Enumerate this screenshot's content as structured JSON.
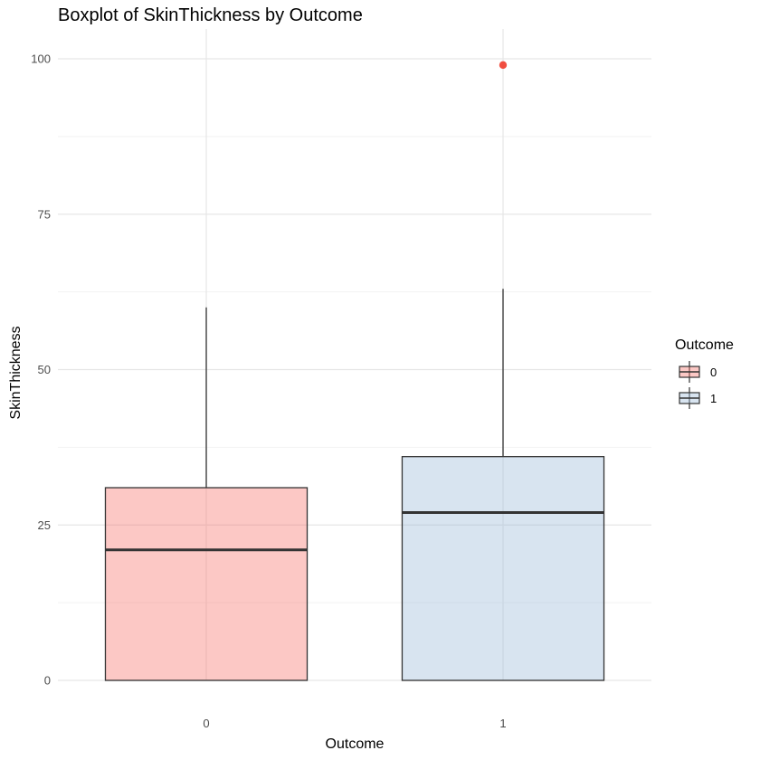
{
  "chart_data": {
    "type": "boxplot",
    "title": "Boxplot of SkinThickness by Outcome",
    "xlabel": "Outcome",
    "ylabel": "SkinThickness",
    "ylim": [
      0,
      100
    ],
    "y_ticks": [
      0,
      25,
      50,
      75,
      100
    ],
    "y_tick_labels": [
      "0",
      "25",
      "50",
      "75",
      "100"
    ],
    "grid": true,
    "legend": {
      "title": "Outcome",
      "position": "right",
      "entries": [
        "0",
        "1"
      ]
    },
    "categories": [
      "0",
      "1"
    ],
    "boxes": [
      {
        "category": "0",
        "min": 0,
        "q1": 0,
        "median": 21,
        "q3": 31,
        "max": 60,
        "outliers": [],
        "fill": "#f8766d",
        "outlier_color": "#f8766d"
      },
      {
        "category": "1",
        "min": 0,
        "q1": 0,
        "median": 27,
        "q3": 36,
        "max": 63,
        "outliers": [
          99
        ],
        "fill": "#9ebcda",
        "outlier_color": "#ef3b2c"
      }
    ]
  }
}
